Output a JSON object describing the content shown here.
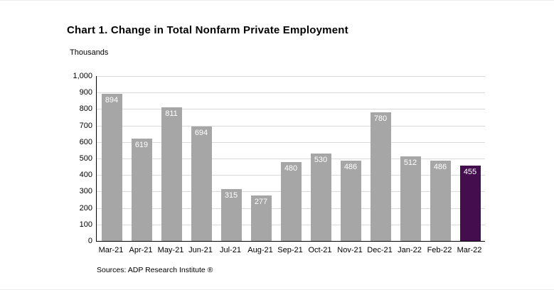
{
  "header": {
    "title": "Chart 1. Change in Total Nonfarm Private Employment"
  },
  "footer": {
    "source": "Sources: ADP Research Institute ®"
  },
  "colors": {
    "bar": "#a6a6a6",
    "highlight": "#430d4e",
    "grid": "#d9d9d9",
    "value_label": "#ffffff"
  },
  "chart_data": {
    "type": "bar",
    "title": "Chart 1. Change in Total Nonfarm Private Employment",
    "xlabel": "",
    "ylabel": "Thousands",
    "categories": [
      "Mar-21",
      "Apr-21",
      "May-21",
      "Jun-21",
      "Jul-21",
      "Aug-21",
      "Sep-21",
      "Oct-21",
      "Nov-21",
      "Dec-21",
      "Jan-22",
      "Feb-22",
      "Mar-22"
    ],
    "values": [
      894,
      619,
      811,
      694,
      315,
      277,
      480,
      530,
      486,
      780,
      512,
      486,
      455
    ],
    "highlight_index": 12,
    "ylim": [
      0,
      1000
    ],
    "y_tick_step": 100,
    "y_tick_labels_top_to_bottom": [
      "1,000",
      "900",
      "800",
      "700",
      "600",
      "500",
      "400",
      "300",
      "200",
      "100",
      "0"
    ],
    "grid": true,
    "legend_position": "none",
    "data_labels": "inside-top"
  }
}
